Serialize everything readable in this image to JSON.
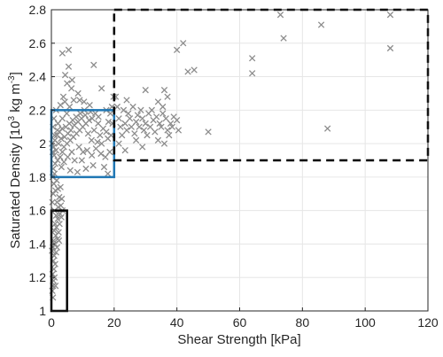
{
  "chart_data": {
    "type": "scatter",
    "title": "",
    "xlabel": "Shear Strength [kPa]",
    "ylabel_parts": {
      "base": "Saturated Density [10",
      "sup1": "3",
      "mid": " kg m",
      "sup2": "-3",
      "end": "]"
    },
    "xlim": [
      0,
      120
    ],
    "ylim": [
      1,
      2.8
    ],
    "xticks": [
      0,
      20,
      40,
      60,
      80,
      100,
      120
    ],
    "yticks": [
      1,
      1.2,
      1.4,
      1.6,
      1.8,
      2,
      2.2,
      2.4,
      2.6,
      2.8
    ],
    "ytick_labels": [
      "1",
      "1.2",
      "1.4",
      "1.6",
      "1.8",
      "2",
      "2.2",
      "2.4",
      "2.6",
      "2.8"
    ],
    "grid": true,
    "marker": "x",
    "marker_color": "#8c8c8c",
    "points": [
      [
        0.3,
        1.12
      ],
      [
        0.5,
        1.15
      ],
      [
        0.7,
        1.18
      ],
      [
        0.4,
        1.22
      ],
      [
        0.8,
        1.25
      ],
      [
        1.0,
        1.2
      ],
      [
        0.6,
        1.3
      ],
      [
        1.2,
        1.28
      ],
      [
        0.9,
        1.33
      ],
      [
        1.5,
        1.35
      ],
      [
        0.5,
        1.38
      ],
      [
        1.1,
        1.4
      ],
      [
        1.8,
        1.38
      ],
      [
        0.7,
        1.42
      ],
      [
        1.4,
        1.45
      ],
      [
        2.0,
        1.43
      ],
      [
        0.9,
        1.48
      ],
      [
        1.6,
        1.5
      ],
      [
        2.3,
        1.47
      ],
      [
        1.2,
        1.52
      ],
      [
        2.0,
        1.55
      ],
      [
        2.6,
        1.52
      ],
      [
        1.5,
        1.57
      ],
      [
        2.8,
        1.58
      ],
      [
        3.2,
        1.56
      ],
      [
        1.0,
        1.6
      ],
      [
        2.2,
        1.62
      ],
      [
        3.0,
        1.63
      ],
      [
        3.5,
        1.6
      ],
      [
        1.8,
        1.65
      ],
      [
        2.5,
        1.68
      ],
      [
        3.3,
        1.67
      ],
      [
        0.6,
        1.7
      ],
      [
        1.3,
        1.72
      ],
      [
        2.1,
        1.73
      ],
      [
        2.9,
        1.74
      ],
      [
        0.8,
        1.76
      ],
      [
        1.7,
        1.78
      ],
      [
        0.4,
        1.8
      ],
      [
        1.0,
        1.82
      ],
      [
        0.3,
        1.65
      ],
      [
        0.5,
        1.08
      ],
      [
        1.3,
        1.15
      ],
      [
        2.4,
        1.42
      ],
      [
        0.2,
        1.36
      ],
      [
        0.6,
        1.85
      ],
      [
        1.2,
        1.88
      ],
      [
        2.0,
        1.9
      ],
      [
        0.9,
        1.93
      ],
      [
        2.8,
        1.92
      ],
      [
        1.5,
        1.96
      ],
      [
        3.5,
        1.95
      ],
      [
        0.7,
        1.98
      ],
      [
        2.3,
        2.0
      ],
      [
        4.0,
        1.98
      ],
      [
        1.1,
        2.02
      ],
      [
        3.1,
        2.03
      ],
      [
        5.0,
        2.0
      ],
      [
        1.8,
        2.05
      ],
      [
        4.2,
        2.04
      ],
      [
        6.0,
        2.02
      ],
      [
        2.6,
        2.07
      ],
      [
        5.3,
        2.06
      ],
      [
        7.0,
        2.04
      ],
      [
        3.4,
        2.09
      ],
      [
        6.2,
        2.08
      ],
      [
        8.0,
        2.06
      ],
      [
        4.6,
        2.1
      ],
      [
        7.3,
        2.11
      ],
      [
        9.0,
        2.08
      ],
      [
        5.7,
        2.12
      ],
      [
        8.5,
        2.13
      ],
      [
        10.0,
        2.1
      ],
      [
        6.8,
        2.14
      ],
      [
        9.6,
        2.15
      ],
      [
        11.0,
        2.12
      ],
      [
        7.9,
        2.16
      ],
      [
        10.8,
        2.17
      ],
      [
        12.0,
        2.14
      ],
      [
        9.2,
        2.18
      ],
      [
        12.5,
        2.19
      ],
      [
        13.0,
        2.15
      ],
      [
        10.5,
        2.2
      ],
      [
        14.0,
        2.18
      ],
      [
        15.0,
        2.16
      ],
      [
        11.7,
        2.06
      ],
      [
        13.6,
        2.08
      ],
      [
        15.5,
        2.05
      ],
      [
        16.5,
        2.09
      ],
      [
        17.5,
        2.07
      ],
      [
        12.8,
        2.02
      ],
      [
        14.7,
        2.01
      ],
      [
        16.0,
        2.0
      ],
      [
        18.0,
        2.03
      ],
      [
        19.0,
        2.05
      ],
      [
        8.8,
        1.98
      ],
      [
        10.1,
        1.95
      ],
      [
        11.4,
        1.96
      ],
      [
        12.9,
        1.93
      ],
      [
        14.2,
        1.97
      ],
      [
        6.5,
        1.95
      ],
      [
        5.2,
        1.92
      ],
      [
        4.0,
        1.89
      ],
      [
        9.7,
        1.9
      ],
      [
        7.4,
        1.9
      ],
      [
        15.8,
        1.94
      ],
      [
        17.2,
        1.92
      ],
      [
        18.6,
        1.95
      ],
      [
        16.8,
        1.86
      ],
      [
        18.0,
        1.82
      ],
      [
        13.3,
        1.87
      ],
      [
        11.0,
        1.85
      ],
      [
        6.0,
        1.84
      ],
      [
        3.2,
        1.86
      ],
      [
        8.3,
        1.83
      ],
      [
        2.1,
        2.12
      ],
      [
        3.5,
        2.15
      ],
      [
        4.9,
        2.18
      ],
      [
        1.5,
        2.2
      ],
      [
        2.9,
        2.23
      ],
      [
        4.3,
        2.25
      ],
      [
        5.8,
        2.22
      ],
      [
        7.1,
        2.26
      ],
      [
        8.5,
        2.3
      ],
      [
        6.4,
        2.33
      ],
      [
        3.8,
        2.28
      ],
      [
        5.0,
        2.36
      ],
      [
        6.6,
        2.38
      ],
      [
        4.4,
        2.41
      ],
      [
        5.5,
        2.46
      ],
      [
        13.5,
        2.47
      ],
      [
        3.5,
        2.54
      ],
      [
        5.5,
        2.56
      ],
      [
        9.0,
        2.26
      ],
      [
        16.0,
        2.33
      ],
      [
        17.5,
        2.2
      ],
      [
        18.8,
        2.18
      ],
      [
        19.5,
        2.12
      ],
      [
        19.3,
        2.22
      ],
      [
        19.8,
        2.28
      ],
      [
        18.2,
        2.13
      ],
      [
        14.9,
        2.12
      ],
      [
        12.2,
        2.23
      ],
      [
        10.4,
        2.25
      ],
      [
        0.5,
        2.1
      ],
      [
        0.2,
        2.0
      ],
      [
        0.4,
        1.95
      ],
      [
        1.0,
        2.05
      ],
      [
        0.8,
        2.15
      ],
      [
        1.9,
        2.08
      ],
      [
        20.5,
        2.28
      ],
      [
        21.0,
        2.22
      ],
      [
        21.5,
        2.15
      ],
      [
        22.0,
        2.1
      ],
      [
        22.5,
        2.05
      ],
      [
        23.0,
        2.2
      ],
      [
        23.5,
        2.12
      ],
      [
        24.0,
        2.08
      ],
      [
        24.5,
        2.18
      ],
      [
        25.0,
        2.15
      ],
      [
        25.5,
        2.1
      ],
      [
        26.0,
        2.22
      ],
      [
        26.5,
        2.06
      ],
      [
        27.0,
        2.13
      ],
      [
        27.5,
        2.17
      ],
      [
        28.0,
        2.1
      ],
      [
        28.5,
        2.2
      ],
      [
        29.0,
        2.15
      ],
      [
        29.5,
        2.08
      ],
      [
        30.0,
        2.12
      ],
      [
        30.5,
        2.05
      ],
      [
        31.0,
        2.18
      ],
      [
        31.5,
        2.1
      ],
      [
        32.0,
        2.2
      ],
      [
        32.5,
        2.14
      ],
      [
        33.0,
        2.07
      ],
      [
        33.5,
        2.16
      ],
      [
        34.0,
        2.02
      ],
      [
        34.5,
        2.12
      ],
      [
        35.0,
        2.1
      ],
      [
        35.5,
        2.18
      ],
      [
        36.0,
        2.0
      ],
      [
        36.5,
        2.15
      ],
      [
        37.0,
        2.08
      ],
      [
        38.0,
        2.12
      ],
      [
        38.5,
        2.1
      ],
      [
        39.0,
        2.16
      ],
      [
        40.0,
        2.14
      ],
      [
        36.0,
        2.32
      ],
      [
        37.0,
        2.28
      ],
      [
        35.5,
        2.22
      ],
      [
        34.0,
        2.25
      ],
      [
        30.0,
        2.32
      ],
      [
        24.0,
        2.26
      ],
      [
        27.0,
        2.02
      ],
      [
        29.0,
        1.98
      ],
      [
        21.5,
        2.0
      ],
      [
        23.5,
        1.96
      ],
      [
        40.5,
        2.08
      ],
      [
        37.5,
        2.05
      ],
      [
        40.0,
        2.56
      ],
      [
        42.0,
        2.6
      ],
      [
        43.5,
        2.43
      ],
      [
        45.5,
        2.44
      ],
      [
        50.0,
        2.07
      ],
      [
        64.0,
        2.51
      ],
      [
        64.0,
        2.42
      ],
      [
        73.0,
        2.77
      ],
      [
        74.0,
        2.63
      ],
      [
        86.0,
        2.71
      ],
      [
        88.0,
        2.09
      ],
      [
        108.0,
        2.77
      ],
      [
        108.0,
        2.57
      ]
    ],
    "regions": [
      {
        "x": [
          0,
          5
        ],
        "y": [
          1.0,
          1.6
        ],
        "color": "#000000",
        "style": "solid"
      },
      {
        "x": [
          0,
          20
        ],
        "y": [
          1.8,
          2.2
        ],
        "color": "#1f77b4",
        "style": "solid"
      },
      {
        "x": [
          20,
          120
        ],
        "y": [
          1.9,
          2.8
        ],
        "color": "#000000",
        "style": "dashed"
      }
    ]
  }
}
